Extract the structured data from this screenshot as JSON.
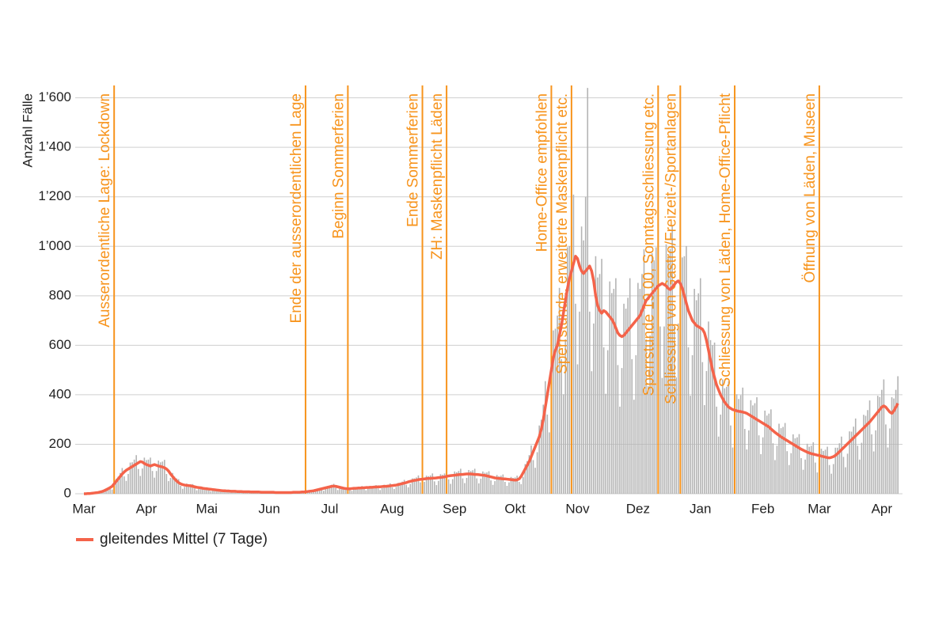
{
  "chart_data": {
    "type": "bar-line",
    "y_label": "Anzahl Fälle",
    "ylim": [
      0,
      1650
    ],
    "yticks": [
      0,
      200,
      400,
      600,
      800,
      {
        "value": 1000,
        "label": "1’000"
      },
      {
        "value": 1200,
        "label": "1’200"
      },
      {
        "value": 1400,
        "label": "1’400"
      },
      {
        "value": 1600,
        "label": "1’600"
      }
    ],
    "grid": true,
    "categories": [
      "Mar",
      null,
      null,
      null,
      null,
      null,
      null,
      null,
      null,
      null,
      null,
      null,
      null,
      null,
      null,
      null,
      null,
      null,
      null,
      null,
      null,
      null,
      null,
      null,
      null,
      null,
      null,
      null,
      null,
      null,
      null,
      "Apr",
      null,
      null,
      null,
      null,
      null,
      null,
      null,
      null,
      null,
      null,
      null,
      null,
      null,
      null,
      null,
      null,
      null,
      null,
      null,
      null,
      null,
      null,
      null,
      null,
      null,
      null,
      null,
      null,
      null,
      "Mai",
      null,
      null,
      null,
      null,
      null,
      null,
      null,
      null,
      null,
      null,
      null,
      null,
      null,
      null,
      null,
      null,
      null,
      null,
      null,
      null,
      null,
      null,
      null,
      null,
      null,
      null,
      null,
      null,
      null,
      null,
      "Jun",
      null,
      null,
      null,
      null,
      null,
      null,
      null,
      null,
      null,
      null,
      null,
      null,
      null,
      null,
      null,
      null,
      null,
      null,
      null,
      null,
      null,
      null,
      null,
      null,
      null,
      null,
      null,
      null,
      null,
      "Jul",
      null,
      null,
      null,
      null,
      null,
      null,
      null,
      null,
      null,
      null,
      null,
      null,
      null,
      null,
      null,
      null,
      null,
      null,
      null,
      null,
      null,
      null,
      null,
      null,
      null,
      null,
      null,
      null,
      null,
      null,
      "Aug",
      null,
      null,
      null,
      null,
      null,
      null,
      null,
      null,
      null,
      null,
      null,
      null,
      null,
      null,
      null,
      null,
      null,
      null,
      null,
      null,
      null,
      null,
      null,
      null,
      null,
      null,
      null,
      null,
      null,
      null,
      "Sep",
      null,
      null,
      null,
      null,
      null,
      null,
      null,
      null,
      null,
      null,
      null,
      null,
      null,
      null,
      null,
      null,
      null,
      null,
      null,
      null,
      null,
      null,
      null,
      null,
      null,
      null,
      null,
      null,
      null,
      "Okt",
      null,
      null,
      null,
      null,
      null,
      null,
      null,
      null,
      null,
      null,
      null,
      null,
      null,
      null,
      null,
      null,
      null,
      null,
      null,
      null,
      null,
      null,
      null,
      null,
      null,
      null,
      null,
      null,
      null,
      null,
      "Nov",
      null,
      null,
      null,
      null,
      null,
      null,
      null,
      null,
      null,
      null,
      null,
      null,
      null,
      null,
      null,
      null,
      null,
      null,
      null,
      null,
      null,
      null,
      null,
      null,
      null,
      null,
      null,
      null,
      null,
      "Dez",
      null,
      null,
      null,
      null,
      null,
      null,
      null,
      null,
      null,
      null,
      null,
      null,
      null,
      null,
      null,
      null,
      null,
      null,
      null,
      null,
      null,
      null,
      null,
      null,
      null,
      null,
      null,
      null,
      null,
      null,
      "Jan",
      null,
      null,
      null,
      null,
      null,
      null,
      null,
      null,
      null,
      null,
      null,
      null,
      null,
      null,
      null,
      null,
      null,
      null,
      null,
      null,
      null,
      null,
      null,
      null,
      null,
      null,
      null,
      null,
      null,
      null,
      "Feb",
      null,
      null,
      null,
      null,
      null,
      null,
      null,
      null,
      null,
      null,
      null,
      null,
      null,
      null,
      null,
      null,
      null,
      null,
      null,
      null,
      null,
      null,
      null,
      null,
      null,
      null,
      null,
      "Mar",
      null,
      null,
      null,
      null,
      null,
      null,
      null,
      null,
      null,
      null,
      null,
      null,
      null,
      null,
      null,
      null,
      null,
      null,
      null,
      null,
      null,
      null,
      null,
      null,
      null,
      null,
      null,
      null,
      null,
      null,
      "Apr",
      null,
      null,
      null,
      null,
      null,
      null,
      null,
      null
    ],
    "bars": {
      "color": "#b4b4b4",
      "values": [
        0,
        0,
        1,
        1,
        2,
        4,
        3,
        3,
        6,
        11,
        14,
        19,
        26,
        20,
        17,
        32,
        60,
        69,
        84,
        104,
        70,
        52,
        80,
        126,
        127,
        138,
        156,
        100,
        72,
        102,
        146,
        136,
        138,
        146,
        92,
        65,
        92,
        134,
        127,
        130,
        137,
        80,
        51,
        64,
        84,
        69,
        62,
        59,
        32,
        20,
        28,
        41,
        38,
        38,
        39,
        22,
        14,
        20,
        29,
        25,
        25,
        26,
        15,
        10,
        14,
        19,
        17,
        17,
        17,
        10,
        7,
        9,
        13,
        12,
        12,
        13,
        7,
        5,
        7,
        10,
        9,
        10,
        10,
        6,
        4,
        6,
        8,
        8,
        7,
        8,
        5,
        3,
        5,
        7,
        7,
        6,
        7,
        4,
        3,
        4,
        6,
        6,
        6,
        7,
        5,
        3,
        5,
        7,
        8,
        8,
        10,
        7,
        6,
        9,
        14,
        16,
        19,
        23,
        16,
        12,
        19,
        31,
        32,
        36,
        40,
        24,
        15,
        21,
        29,
        25,
        25,
        26,
        16,
        12,
        18,
        26,
        26,
        28,
        31,
        19,
        14,
        20,
        31,
        30,
        32,
        35,
        22,
        15,
        23,
        36,
        35,
        37,
        42,
        26,
        19,
        28,
        44,
        45,
        49,
        56,
        36,
        26,
        40,
        62,
        62,
        66,
        74,
        46,
        32,
        48,
        73,
        71,
        74,
        82,
        50,
        35,
        52,
        79,
        77,
        82,
        91,
        58,
        40,
        59,
        90,
        87,
        92,
        101,
        62,
        43,
        64,
        96,
        92,
        95,
        101,
        62,
        42,
        61,
        90,
        85,
        86,
        91,
        54,
        36,
        51,
        76,
        71,
        73,
        78,
        48,
        32,
        46,
        68,
        64,
        66,
        73,
        48,
        39,
        68,
        120,
        132,
        156,
        195,
        136,
        105,
        168,
        276,
        299,
        360,
        455,
        320,
        248,
        400,
        660,
        667,
        720,
        832,
        544,
        402,
        624,
        996,
        1001,
        1080,
        1209,
        768,
        523,
        736,
        1080,
        1024,
        1200,
        1640,
        736,
        495,
        688,
        960,
        874,
        888,
        949,
        592,
        404,
        580,
        858,
        811,
        828,
        871,
        520,
        352,
        508,
        768,
        748,
        792,
        871,
        544,
        380,
        560,
        852,
        828,
        888,
        988,
        624,
        435,
        640,
        972,
        943,
        996,
        1092,
        676,
        468,
        676,
        1008,
        955,
        990,
        1086,
        676,
        470,
        688,
        1200,
        955,
        960,
        1001,
        592,
        396,
        560,
        828,
        782,
        810,
        871,
        532,
        358,
        496,
        696,
        621,
        600,
        611,
        352,
        231,
        320,
        462,
        426,
        432,
        455,
        276,
        187,
        270,
        402,
        383,
        398,
        429,
        262,
        179,
        256,
        378,
        357,
        366,
        390,
        236,
        160,
        228,
        336,
        316,
        324,
        341,
        204,
        136,
        194,
        283,
        265,
        270,
        286,
        172,
        116,
        164,
        240,
        224,
        228,
        241,
        144,
        97,
        138,
        202,
        190,
        194,
        208,
        126,
        86,
        124,
        182,
        173,
        178,
        190,
        116,
        81,
        120,
        186,
        186,
        204,
        231,
        149,
        107,
        162,
        252,
        251,
        271,
        304,
        194,
        138,
        206,
        319,
        315,
        338,
        377,
        240,
        171,
        256,
        396,
        391,
        420,
        462,
        280,
        187,
        264,
        390,
        385,
        420,
        475
      ]
    },
    "series": [
      {
        "name": "gleitendes Mittel (7 Tage)",
        "color": "#f4634a",
        "values": [
          0,
          0,
          1,
          1,
          2,
          3,
          4,
          5,
          7,
          9,
          12,
          16,
          20,
          25,
          30,
          40,
          50,
          60,
          70,
          80,
          88,
          95,
          100,
          105,
          110,
          115,
          120,
          125,
          130,
          128,
          122,
          118,
          115,
          112,
          115,
          118,
          115,
          112,
          110,
          108,
          105,
          100,
          92,
          80,
          70,
          60,
          52,
          45,
          40,
          37,
          35,
          34,
          33,
          32,
          30,
          28,
          26,
          25,
          24,
          22,
          21,
          20,
          19,
          18,
          17,
          16,
          15,
          14,
          13,
          12,
          12,
          11,
          11,
          10,
          10,
          10,
          9,
          9,
          9,
          8,
          8,
          8,
          8,
          7,
          7,
          7,
          7,
          7,
          6,
          6,
          6,
          6,
          6,
          6,
          6,
          5,
          5,
          5,
          5,
          5,
          5,
          5,
          5,
          5,
          6,
          6,
          6,
          6,
          7,
          7,
          8,
          9,
          10,
          11,
          12,
          14,
          16,
          18,
          20,
          22,
          24,
          26,
          28,
          30,
          31,
          30,
          28,
          26,
          24,
          22,
          21,
          20,
          20,
          21,
          22,
          22,
          23,
          23,
          24,
          24,
          25,
          25,
          26,
          26,
          27,
          27,
          28,
          28,
          29,
          30,
          30,
          31,
          32,
          33,
          34,
          35,
          37,
          39,
          41,
          43,
          45,
          48,
          50,
          52,
          54,
          55,
          57,
          58,
          59,
          60,
          61,
          62,
          62,
          63,
          63,
          64,
          65,
          66,
          67,
          68,
          70,
          72,
          73,
          74,
          75,
          76,
          77,
          78,
          78,
          79,
          80,
          80,
          80,
          79,
          78,
          78,
          77,
          76,
          75,
          74,
          72,
          70,
          68,
          66,
          64,
          63,
          62,
          61,
          60,
          60,
          59,
          58,
          57,
          56,
          55,
          56,
          60,
          70,
          85,
          100,
          115,
          130,
          150,
          170,
          190,
          210,
          230,
          260,
          300,
          350,
          400,
          450,
          500,
          550,
          580,
          600,
          640,
          680,
          730,
          780,
          830,
          870,
          900,
          930,
          960,
          950,
          920,
          900,
          890,
          900,
          910,
          920,
          900,
          860,
          800,
          760,
          740,
          730,
          740,
          735,
          725,
          715,
          705,
          690,
          670,
          650,
          640,
          635,
          640,
          650,
          660,
          670,
          680,
          690,
          700,
          710,
          720,
          740,
          760,
          780,
          790,
          800,
          810,
          820,
          830,
          840,
          845,
          850,
          845,
          840,
          830,
          825,
          835,
          845,
          855,
          860,
          850,
          830,
          800,
          770,
          740,
          720,
          700,
          690,
          680,
          675,
          670,
          665,
          650,
          620,
          580,
          540,
          500,
          470,
          440,
          420,
          400,
          385,
          370,
          360,
          350,
          345,
          340,
          338,
          335,
          333,
          332,
          330,
          328,
          325,
          320,
          315,
          310,
          305,
          300,
          295,
          290,
          285,
          280,
          275,
          270,
          262,
          255,
          248,
          242,
          236,
          230,
          225,
          220,
          215,
          210,
          205,
          200,
          195,
          190,
          185,
          180,
          176,
          172,
          168,
          165,
          162,
          160,
          158,
          156,
          155,
          152,
          150,
          148,
          146,
          145,
          147,
          150,
          155,
          162,
          170,
          178,
          186,
          194,
          202,
          210,
          218,
          226,
          234,
          242,
          250,
          258,
          266,
          274,
          282,
          290,
          300,
          310,
          320,
          330,
          340,
          350,
          355,
          350,
          340,
          330,
          325,
          335,
          350,
          365
        ]
      }
    ],
    "annotation_color": "#f7941d",
    "annotations": [
      {
        "x": 15,
        "label": "Ausserordentliche Lage: Lockdown"
      },
      {
        "x": 110,
        "label": "Ende der ausserordentlichen Lage"
      },
      {
        "x": 131,
        "label": "Beginn Sommerferien"
      },
      {
        "x": 168,
        "label": "Ende Sommerferien"
      },
      {
        "x": 180,
        "label": "ZH: Maskenpflicht Läden"
      },
      {
        "x": 232,
        "label": "Home-Office empfohlen"
      },
      {
        "x": 242,
        "label": "Sperrstunde, erweiterte Maskenpflicht etc."
      },
      {
        "x": 285,
        "label": "Sperrstunde 19.00, Sonntagsschliessung etc."
      },
      {
        "x": 296,
        "label": "Schliessung von Gastro/Freizeit-/Sportanlagen"
      },
      {
        "x": 323,
        "label": "Schliessung von Läden, Home-Office-Pflicht"
      },
      {
        "x": 365,
        "label": "Öffnung von Läden, Museen"
      }
    ]
  }
}
